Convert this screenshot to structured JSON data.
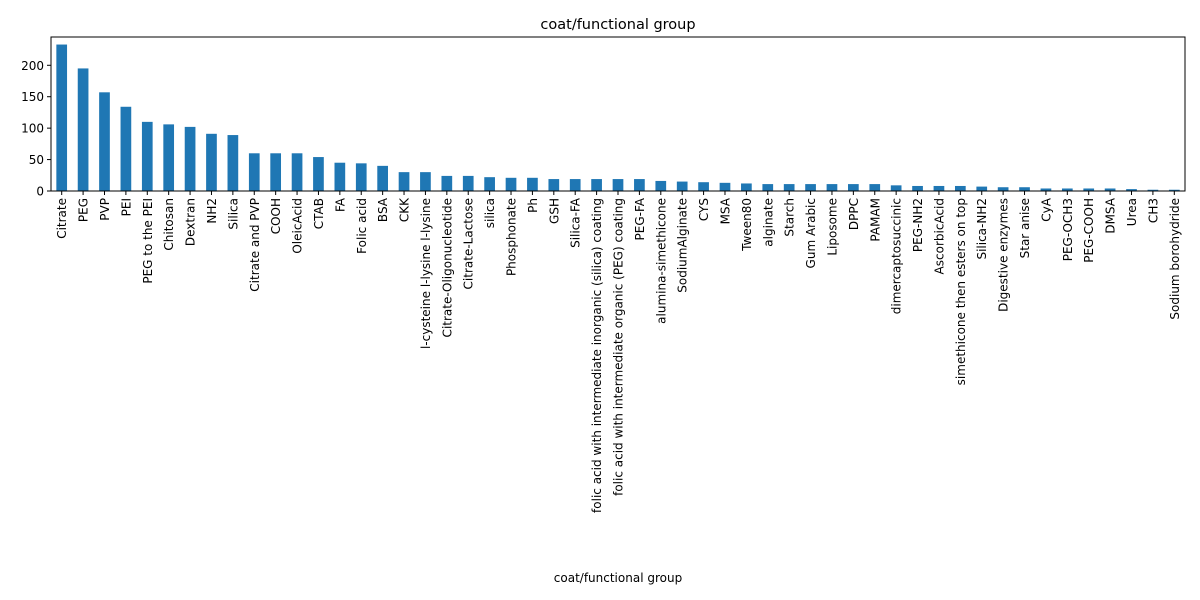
{
  "chart_data": {
    "type": "bar",
    "title": "coat/functional group",
    "xlabel": "coat/functional group",
    "ylabel": "",
    "ylim": [
      0,
      245
    ],
    "yticks": [
      0,
      50,
      100,
      150,
      200
    ],
    "bar_color": "#1f77b4",
    "grid": false,
    "legend": false,
    "categories": [
      "Citrate",
      "PEG",
      "PVP",
      "PEI",
      "PEG to the PEI",
      "Chitosan",
      "Dextran",
      "NH2",
      "Silica",
      "Citrate and PVP",
      "COOH",
      "OleicAcid",
      "CTAB",
      "FA",
      "Folic acid",
      "BSA",
      "CKK",
      "l-cysteine l-lysine l-lysine",
      "Citrate-Oligonucleotide",
      "Citrate-Lactose",
      "silica",
      "Phosphonate",
      "Ph",
      "GSH",
      "Silica-FA",
      "folic acid with intermediate inorganic (silica) coating",
      "folic acid with intermediate organic (PEG) coating",
      "PEG-FA",
      "alumina-simethicone",
      "SodiumAlginate",
      "CYS",
      "MSA",
      "Tween80",
      "alginate",
      "Starch",
      "Gum Arabic",
      "Liposome",
      "DPPC",
      "PAMAM",
      "dimercaptosuccinic",
      "PEG-NH2",
      "AscorbicAcid",
      "simethicone then esters on top",
      "Silica-NH2",
      "Digestive enzymes",
      "Star anise",
      "CyA",
      "PEG-OCH3",
      "PEG-COOH",
      "DMSA",
      "Urea",
      "CH3",
      "Sodium borohydride"
    ],
    "values": [
      233,
      195,
      157,
      134,
      110,
      106,
      102,
      91,
      89,
      60,
      60,
      60,
      54,
      45,
      44,
      40,
      30,
      30,
      24,
      24,
      22,
      21,
      21,
      19,
      19,
      19,
      19,
      19,
      16,
      15,
      14,
      13,
      12,
      11,
      11,
      11,
      11,
      11,
      11,
      9,
      8,
      8,
      8,
      7,
      6,
      6,
      4,
      4,
      4,
      4,
      3,
      2,
      2
    ]
  }
}
